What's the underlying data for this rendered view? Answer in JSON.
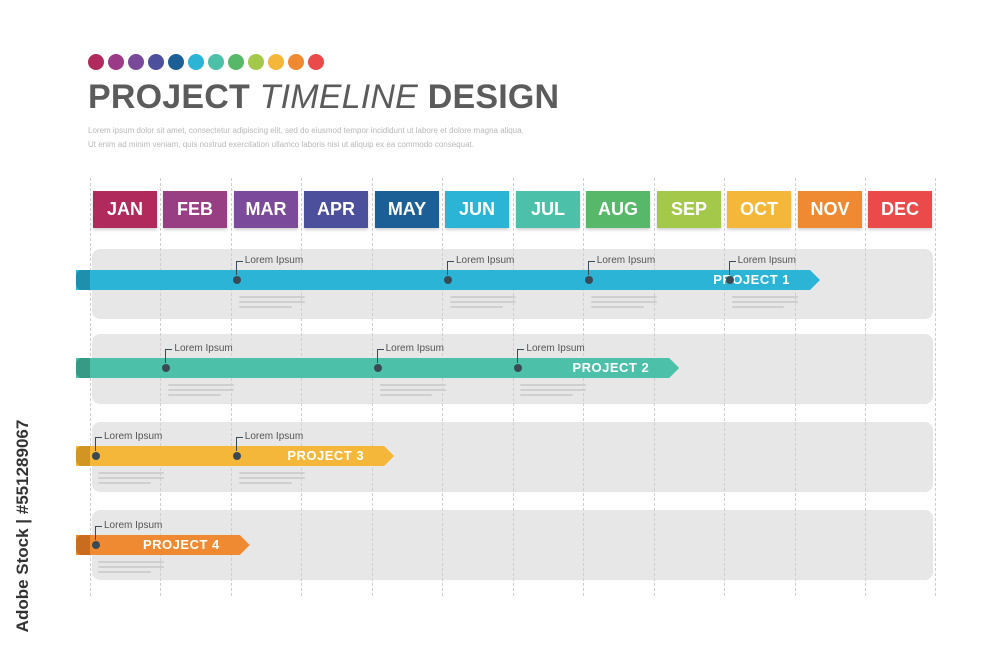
{
  "palette": [
    "#b02a5c",
    "#9b3a86",
    "#7a4a9a",
    "#4b4f9c",
    "#1c5f96",
    "#2bb4d6",
    "#4cc0a8",
    "#57b86a",
    "#a4c94a",
    "#f4b73a",
    "#f08a32",
    "#ea4a4a"
  ],
  "title": {
    "part1": "PROJECT",
    "part2": "TIMELINE",
    "part3": "DESIGN"
  },
  "description": {
    "line1": "Lorem ipsum dolor sit amet, consectetur adipiscing elit, sed do eiusmod tempor incididunt ut labore et dolore magna aliqua.",
    "line2": "Ut enim ad minim veniam, quis nostrud exercitation ullamco laboris nisi ut aliquip ex ea commodo consequat."
  },
  "watermark": "Adobe Stock | #551289067",
  "months": [
    {
      "label": "JAN",
      "color": "#b02a5c"
    },
    {
      "label": "FEB",
      "color": "#983e82"
    },
    {
      "label": "MAR",
      "color": "#7b4a9b"
    },
    {
      "label": "APR",
      "color": "#4b4f9c"
    },
    {
      "label": "MAY",
      "color": "#1c5f96"
    },
    {
      "label": "JUN",
      "color": "#2bb4d6"
    },
    {
      "label": "JUL",
      "color": "#4cc0a8"
    },
    {
      "label": "AUG",
      "color": "#57b86a"
    },
    {
      "label": "SEP",
      "color": "#a4c94a"
    },
    {
      "label": "OCT",
      "color": "#f4b73a"
    },
    {
      "label": "NOV",
      "color": "#f08a32"
    },
    {
      "label": "DEC",
      "color": "#ea4a4a"
    }
  ],
  "projects": [
    {
      "label": "PROJECT  1",
      "color": "#2bb4d6",
      "tail_color": "#1f8fae",
      "end_month": 11,
      "milestones": [
        {
          "month": 3,
          "label": "Lorem Ipsum"
        },
        {
          "month": 6,
          "label": "Lorem Ipsum"
        },
        {
          "month": 8,
          "label": "Lorem Ipsum"
        },
        {
          "month": 10,
          "label": "Lorem Ipsum"
        }
      ]
    },
    {
      "label": "PROJECT  2",
      "color": "#4cc0a8",
      "tail_color": "#369a86",
      "end_month": 9,
      "milestones": [
        {
          "month": 2,
          "label": "Lorem Ipsum"
        },
        {
          "month": 5,
          "label": "Lorem Ipsum"
        },
        {
          "month": 7,
          "label": "Lorem Ipsum"
        }
      ]
    },
    {
      "label": "PROJECT  3",
      "color": "#f4b73a",
      "tail_color": "#d29524",
      "end_month": 4.95,
      "milestones": [
        {
          "month": 1,
          "label": "Lorem Ipsum"
        },
        {
          "month": 3,
          "label": "Lorem Ipsum"
        }
      ]
    },
    {
      "label": "PROJECT  4",
      "color": "#f08a32",
      "tail_color": "#c96c1e",
      "end_month": 2.9,
      "milestones": [
        {
          "month": 1,
          "label": "Lorem Ipsum"
        }
      ]
    }
  ]
}
